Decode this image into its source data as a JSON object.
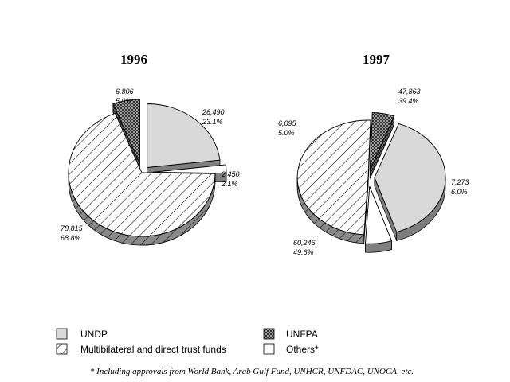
{
  "chart_data": [
    {
      "type": "pie",
      "title": "1996",
      "slices": [
        {
          "category": "UNDP",
          "value": 26490,
          "value_label": "26,490",
          "percent_label": "23.1%"
        },
        {
          "category": "Others*",
          "value": 2450,
          "value_label": "2,450",
          "percent_label": "2.1%"
        },
        {
          "category": "Multibilateral and direct trust funds",
          "value": 78815,
          "value_label": "78,815",
          "percent_label": "68.8%"
        },
        {
          "category": "UNFPA",
          "value": 6806,
          "value_label": "6,806",
          "percent_label": "5.9%"
        }
      ]
    },
    {
      "type": "pie",
      "title": "1997",
      "slices": [
        {
          "category": "UNDP",
          "value": 47863,
          "value_label": "47,863",
          "percent_label": "39.4%"
        },
        {
          "category": "Others*",
          "value": 7273,
          "value_label": "7,273",
          "percent_label": "6.0%"
        },
        {
          "category": "Multibilateral and direct trust funds",
          "value": 60246,
          "value_label": "60,246",
          "percent_label": "49.6%"
        },
        {
          "category": "UNFPA",
          "value": 6095,
          "value_label": "6,095",
          "percent_label": "5.0%"
        }
      ]
    }
  ],
  "legend": {
    "items": [
      {
        "label": "UNDP",
        "pattern": "light-gray"
      },
      {
        "label": "UNFPA",
        "pattern": "crosshatch"
      },
      {
        "label": "Multibilateral and direct trust funds",
        "pattern": "diagonal"
      },
      {
        "label": "Others*",
        "pattern": "white"
      }
    ]
  },
  "footnote": "* Including approvals from World Bank, Arab Gulf Fund, UNHCR, UNFDAC, UNOCA, etc.",
  "colors": {
    "UNDP": "#d9d9d9",
    "UNFPA": "#a0a0a0",
    "Multibilateral and direct trust funds": "#ffffff",
    "Others*": "#ffffff",
    "side_shade": "#7f7f7f",
    "outline": "#000000"
  }
}
